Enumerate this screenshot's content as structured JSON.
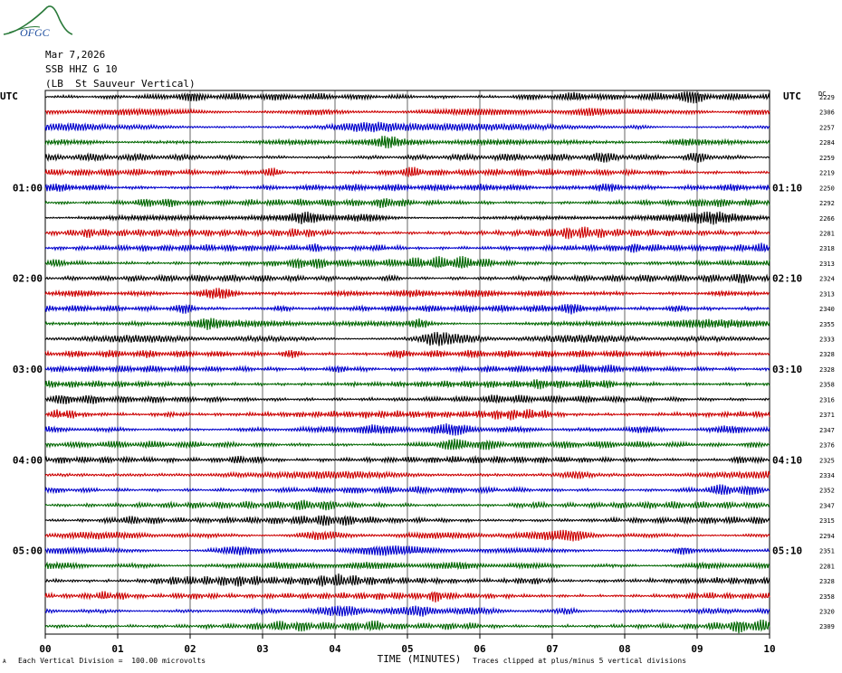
{
  "header": {
    "logo_text": "OFGC",
    "date": "Mar 7,2026",
    "station": "SSB HHZ G 10",
    "location": "(LB  St Sauveur Vertical)"
  },
  "axes": {
    "left_label": "UTC",
    "right_label": "UTC",
    "dc_label": "DC",
    "x_title": "TIME (MINUTES)",
    "left_hour_labels": [
      "01:00",
      "02:00",
      "03:00",
      "04:00",
      "05:00"
    ],
    "right_hour_labels": [
      "01:10",
      "02:10",
      "03:10",
      "04:10",
      "05:10"
    ]
  },
  "footer": {
    "scale_note": "Each Vertical Division =  100.00 microvolts",
    "clip_note": "Traces clipped at plus/minus 5 vertical divisions",
    "corner_mark": "A"
  },
  "colors": {
    "trace_cycle": [
      "#000000",
      "#cc0000",
      "#0000cc",
      "#006600"
    ],
    "grid": "#000000",
    "logo": "#2a7a3a"
  },
  "chart_data": {
    "type": "line",
    "title": "",
    "xlabel": "TIME (MINUTES)",
    "ylabel": "UTC",
    "xlim": [
      0,
      10
    ],
    "x_ticks": [
      "00",
      "01",
      "02",
      "03",
      "04",
      "05",
      "06",
      "07",
      "08",
      "09",
      "10"
    ],
    "traces_per_hour": 6,
    "minutes_per_trace": 10,
    "dc_offsets": [
      2229,
      2306,
      2257,
      2284,
      2259,
      2219,
      2250,
      2292,
      2266,
      2281,
      2318,
      2313,
      2324,
      2313,
      2340,
      2355,
      2333,
      2328,
      2328,
      2358,
      2316,
      2371,
      2347,
      2376,
      2325,
      2334,
      2352,
      2347,
      2315,
      2294,
      2351,
      2281,
      2328,
      2358,
      2320,
      2309
    ]
  }
}
